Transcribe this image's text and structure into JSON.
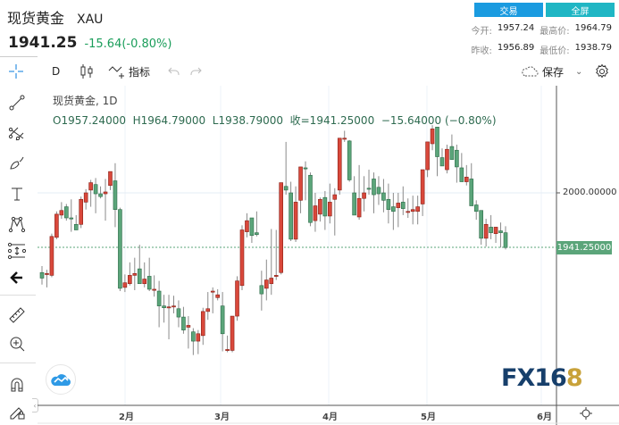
{
  "header": {
    "title": "现货黄金",
    "symbol": "XAU",
    "last_price": "1941.25",
    "change": "-15.64(-0.80%)",
    "trade_button": "交易",
    "fullscreen_button": "全屏",
    "stats": {
      "open_label": "今开:",
      "open": "1957.24",
      "high_label": "最高价:",
      "high": "1964.79",
      "prev_close_label": "昨收:",
      "prev_close": "1956.89",
      "low_label": "最低价:",
      "low": "1938.79"
    }
  },
  "toolbar": {
    "interval": "D",
    "indicators_label": "指标",
    "save_label": "保存"
  },
  "legend": {
    "line1": "现货黄金, 1D",
    "line2": "O1957.24000  H1964.79000  L1938.79000  收=1941.25000  −15.64000 (−0.80%)"
  },
  "price_scale": {
    "gridline_label": "2000.00000",
    "last_price_label": "1941.25000"
  },
  "x_axis": [
    "2月",
    "3月",
    "4月",
    "5月",
    "6月"
  ],
  "watermark": "FX168",
  "colors": {
    "up": "#d9483b",
    "down": "#5ba57a",
    "change_text": "#1a9d5a",
    "trade_button": "#1a9be0",
    "fullscreen_button": "#1fb6c4",
    "price_tag": "#5ba57a"
  },
  "chart_data": {
    "type": "candlestick",
    "title": "现货黄金, 1D",
    "xlabel": "",
    "ylabel": "",
    "x_ticks": [
      "2月",
      "3月",
      "4月",
      "5月",
      "6月"
    ],
    "y_ticks": [
      2000
    ],
    "ylim": [
      1795,
      2110
    ],
    "last_price": 1941.25,
    "legend_position": "top-left",
    "grid": true,
    "note": "Red = close above open (up), green = close below open (down). OHLC values estimated from pixel positions.",
    "ohlc": [
      [
        1914,
        1921,
        1901,
        1908
      ],
      [
        1912,
        1917,
        1898,
        1913
      ],
      [
        1911,
        1956,
        1909,
        1953
      ],
      [
        1952,
        1980,
        1950,
        1977
      ],
      [
        1976,
        1990,
        1972,
        1981
      ],
      [
        1985,
        1988,
        1970,
        1973
      ],
      [
        1973,
        1993,
        1958,
        1972
      ],
      [
        1966,
        1976,
        1960,
        1960
      ],
      [
        1966,
        1996,
        1962,
        1993
      ],
      [
        1990,
        2004,
        1982,
        2000
      ],
      [
        2003,
        2014,
        1985,
        2011
      ],
      [
        2009,
        2016,
        1978,
        1999
      ],
      [
        1999,
        2007,
        1994,
        1996
      ],
      [
        1999,
        2015,
        1970,
        2001
      ],
      [
        2008,
        2023,
        2003,
        2023
      ],
      [
        2013,
        2032,
        1963,
        1982
      ],
      [
        1982,
        1984,
        1894,
        1897
      ],
      [
        1898,
        1912,
        1893,
        1903
      ],
      [
        1902,
        1925,
        1900,
        1911
      ],
      [
        1911,
        1930,
        1895,
        1913
      ],
      [
        1918,
        1944,
        1909,
        1902
      ],
      [
        1902,
        1925,
        1898,
        1907
      ],
      [
        1910,
        1930,
        1894,
        1896
      ],
      [
        1896,
        1911,
        1888,
        1896
      ],
      [
        1894,
        1905,
        1855,
        1878
      ],
      [
        1878,
        1890,
        1860,
        1876
      ],
      [
        1876,
        1890,
        1842,
        1877
      ],
      [
        1877,
        1889,
        1870,
        1878
      ],
      [
        1875,
        1884,
        1855,
        1866
      ],
      [
        1866,
        1877,
        1848,
        1852
      ],
      [
        1855,
        1867,
        1832,
        1857
      ],
      [
        1850,
        1854,
        1825,
        1840
      ],
      [
        1840,
        1852,
        1826,
        1848
      ],
      [
        1846,
        1876,
        1836,
        1872
      ],
      [
        1872,
        1893,
        1863,
        1875
      ],
      [
        1894,
        1898,
        1870,
        1894
      ],
      [
        1887,
        1896,
        1884,
        1890
      ],
      [
        1878,
        1893,
        1829,
        1848
      ],
      [
        1830,
        1846,
        1828,
        1831
      ],
      [
        1830,
        1860,
        1828,
        1867
      ],
      [
        1867,
        1910,
        1862,
        1905
      ],
      [
        1900,
        1965,
        1895,
        1960
      ],
      [
        1958,
        1978,
        1952,
        1970
      ],
      [
        1973,
        1972,
        1946,
        1954
      ],
      [
        1957,
        1980,
        1953,
        1955
      ],
      [
        1900,
        1916,
        1873,
        1891
      ],
      [
        1897,
        1928,
        1884,
        1906
      ],
      [
        1902,
        1961,
        1890,
        1908
      ],
      [
        1910,
        1960,
        1906,
        1911
      ],
      [
        1914,
        1998,
        1912,
        2011
      ],
      [
        2007,
        2055,
        1998,
        2003
      ],
      [
        2000,
        2012,
        1948,
        1950
      ],
      [
        1950,
        2007,
        1947,
        1990
      ],
      [
        1992,
        2028,
        1978,
        2028
      ],
      [
        2027,
        2034,
        1992,
        2026
      ],
      [
        2019,
        2022,
        1964,
        1968
      ],
      [
        1970,
        2000,
        1958,
        1986
      ],
      [
        1977,
        1995,
        1969,
        1993
      ],
      [
        1995,
        2002,
        1960,
        1975
      ],
      [
        1975,
        2010,
        1967,
        1990
      ],
      [
        1993,
        2005,
        1954,
        1998
      ],
      [
        2003,
        2040,
        1998,
        2059
      ],
      [
        2059,
        2067,
        2055,
        2059
      ],
      [
        2056,
        2057,
        2012,
        2014
      ],
      [
        2000,
        2018,
        1993,
        1976
      ],
      [
        1974,
        2030,
        1971,
        1994
      ],
      [
        1994,
        2018,
        1980,
        2000
      ],
      [
        2005,
        2025,
        1998,
        2004
      ],
      [
        2015,
        2022,
        1978,
        1998
      ],
      [
        2006,
        2018,
        1987,
        1999
      ],
      [
        2000,
        2015,
        1979,
        1992
      ],
      [
        1993,
        2010,
        1967,
        1982
      ],
      [
        1985,
        2000,
        1960,
        1980
      ],
      [
        1984,
        2000,
        1963,
        1989
      ],
      [
        1990,
        2007,
        1976,
        1983
      ],
      [
        1980,
        1994,
        1973,
        1980
      ],
      [
        1980,
        1997,
        1966,
        1982
      ],
      [
        1980,
        1997,
        1966,
        1985
      ],
      [
        1988,
        2008,
        1975,
        2025
      ],
      [
        2025,
        2052,
        2017,
        2055
      ],
      [
        2053,
        2073,
        2046,
        2069
      ],
      [
        2071,
        2058,
        2018,
        2039
      ],
      [
        2038,
        2048,
        2033,
        2029
      ],
      [
        2025,
        2052,
        2021,
        2047
      ],
      [
        2050,
        2063,
        2042,
        2036
      ],
      [
        2046,
        2052,
        2011,
        2028
      ],
      [
        2027,
        2043,
        2021,
        2012
      ],
      [
        2012,
        2030,
        2008,
        2017
      ],
      [
        2015,
        2032,
        2000,
        1986
      ],
      [
        1987,
        1992,
        1971,
        1980
      ],
      [
        1981,
        1977,
        1944,
        1951
      ],
      [
        1951,
        1972,
        1942,
        1966
      ],
      [
        1963,
        1976,
        1950,
        1957
      ],
      [
        1956,
        1962,
        1946,
        1963
      ],
      [
        1959,
        1968,
        1941,
        1957
      ],
      [
        1957,
        1964,
        1939,
        1941
      ]
    ]
  }
}
